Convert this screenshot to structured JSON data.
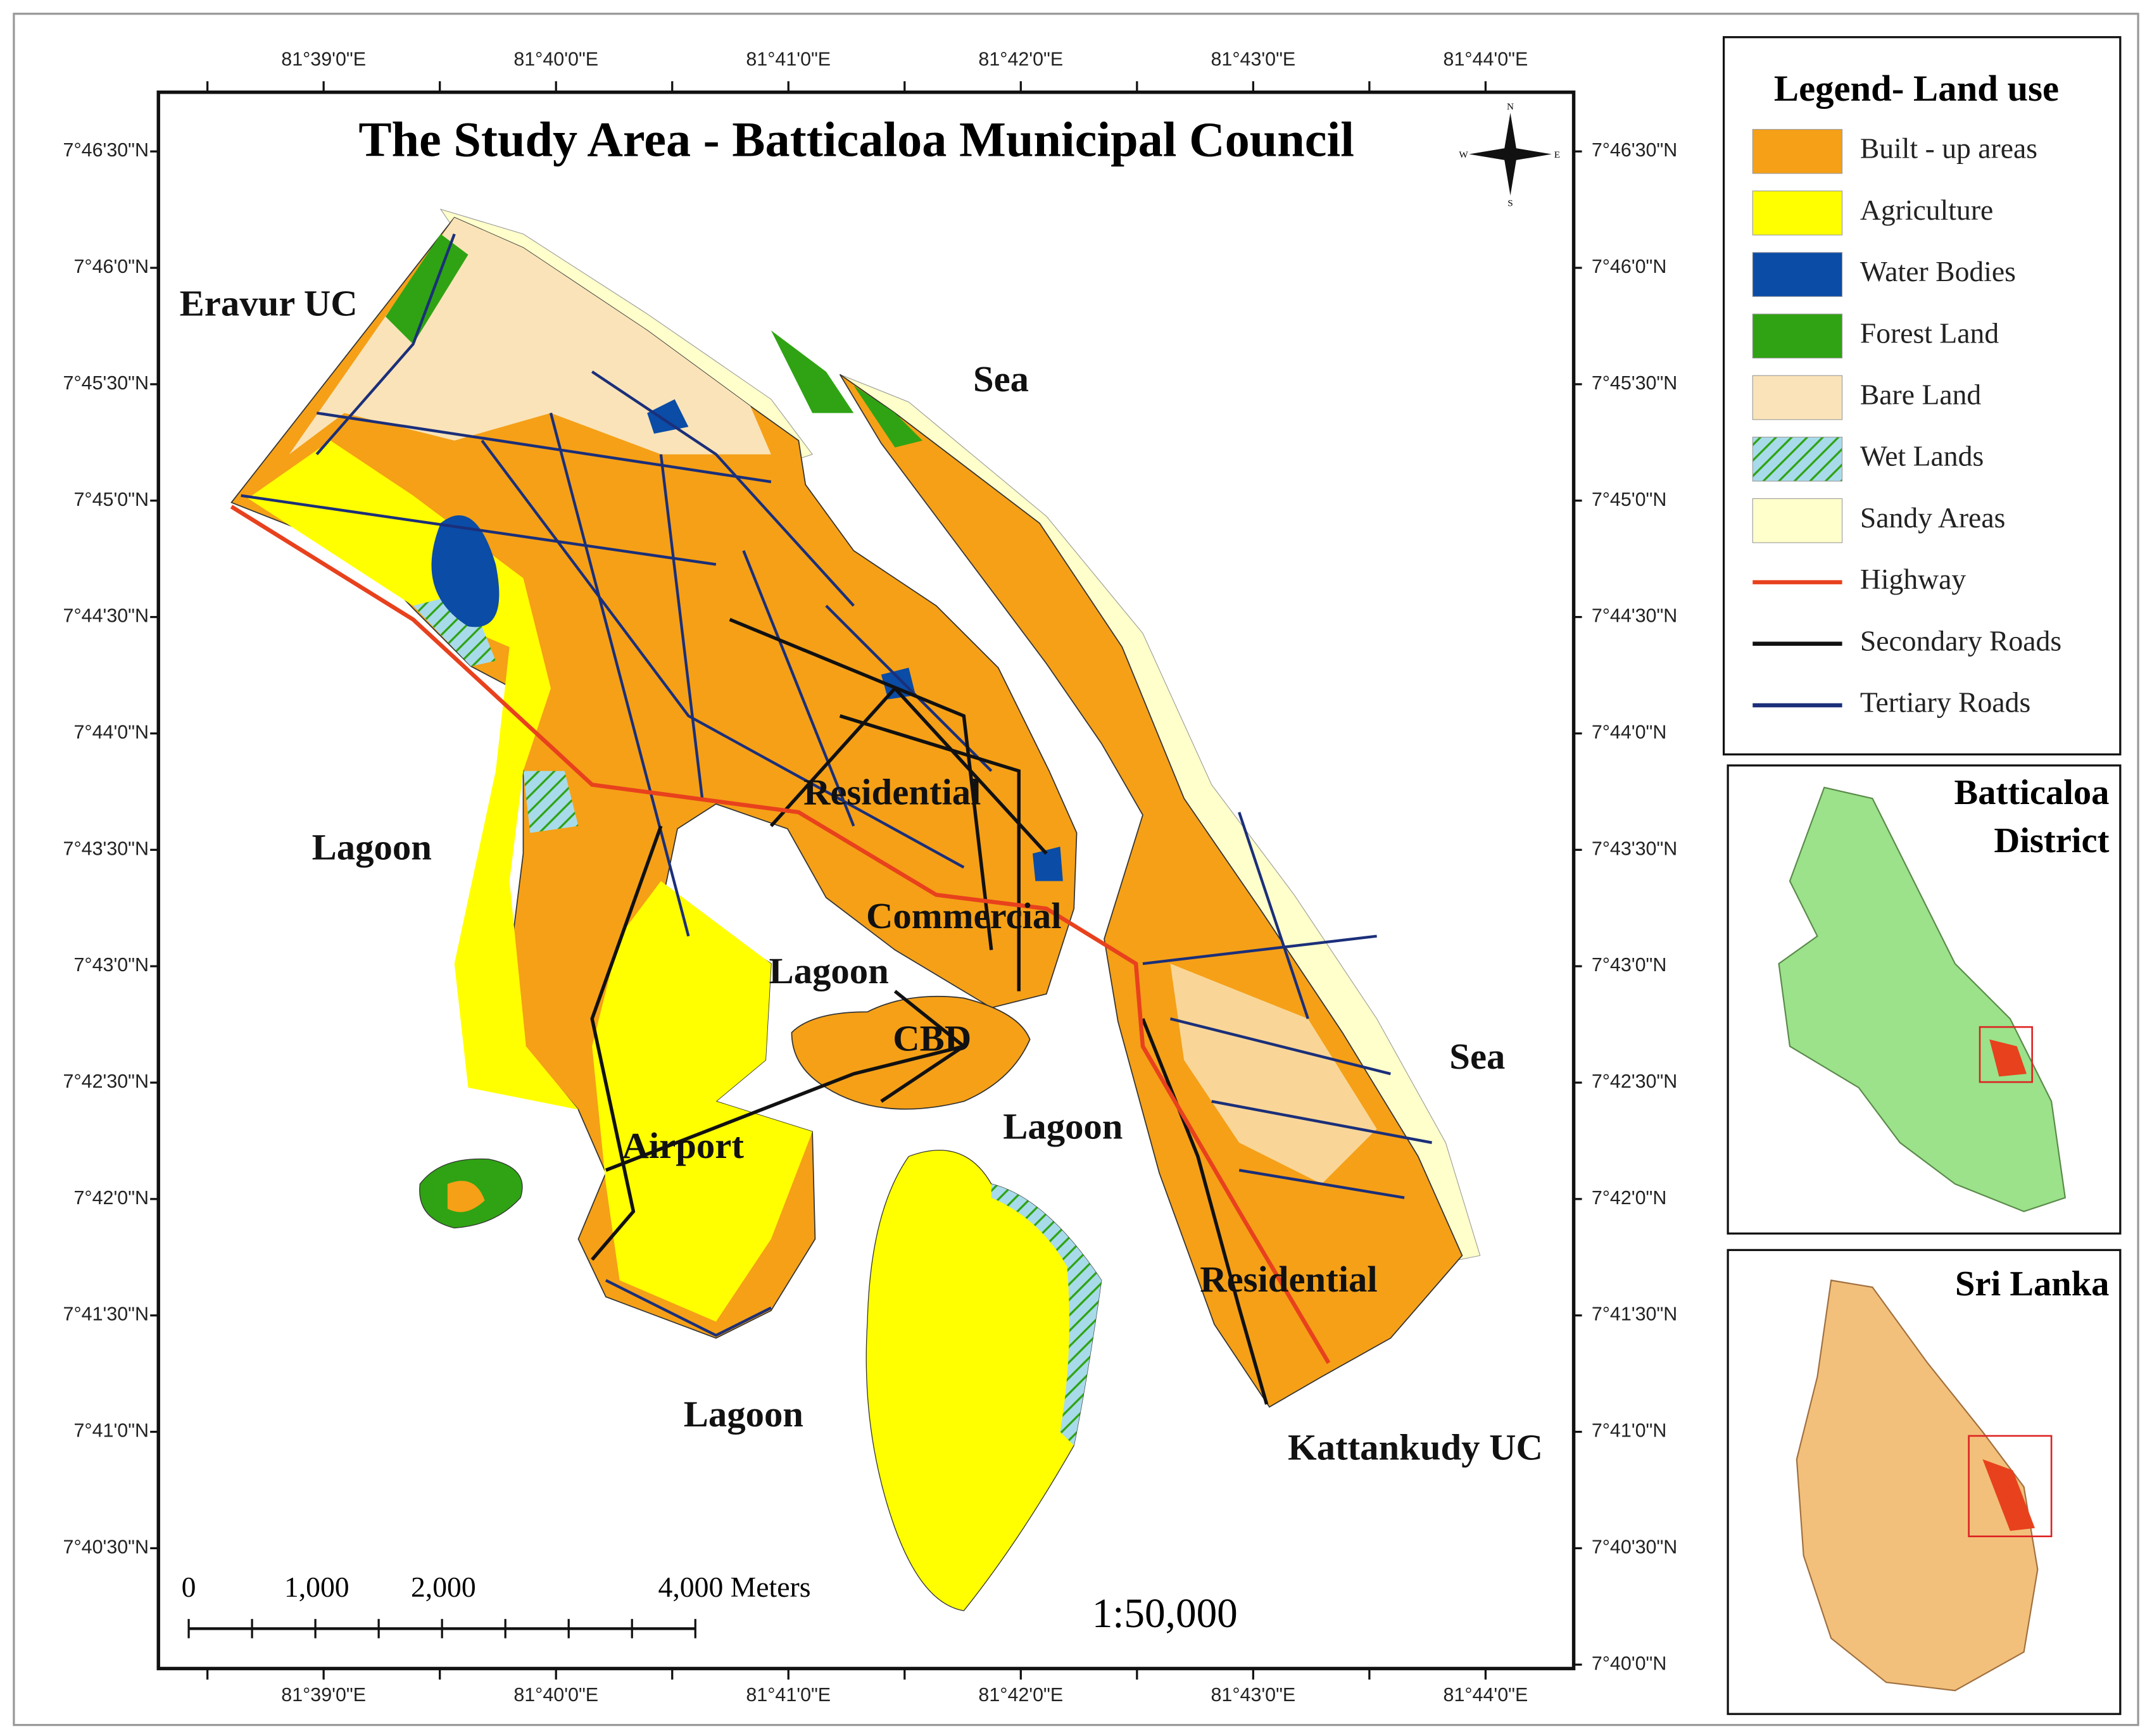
{
  "title": "The Study Area - Batticaloa Municipal Council",
  "longitude_labels": [
    "81°39'0\"E",
    "81°40'0\"E",
    "81°41'0\"E",
    "81°42'0\"E",
    "81°43'0\"E",
    "81°44'0\"E"
  ],
  "latitude_labels": [
    "7°46'30\"N",
    "7°46'0\"N",
    "7°45'30\"N",
    "7°45'0\"N",
    "7°44'30\"N",
    "7°44'0\"N",
    "7°43'30\"N",
    "7°43'0\"N",
    "7°42'30\"N",
    "7°42'0\"N",
    "7°41'30\"N",
    "7°41'0\"N",
    "7°40'30\"N",
    "7°40'0\"N"
  ],
  "place_labels": [
    "Eravur UC",
    "Sea",
    "Lagoon",
    "Residential",
    "Commercial",
    "Lagoon",
    "CBD",
    "Lagoon",
    "Airport",
    "Lagoon",
    "Residential",
    "Sea",
    "Kattankudy UC"
  ],
  "compass": [
    "N",
    "E",
    "S",
    "W"
  ],
  "legend": {
    "title": "Legend- Land use",
    "items": [
      {
        "label": "Built - up areas",
        "kind": "fill",
        "color": "#f5a017"
      },
      {
        "label": "Agriculture",
        "kind": "fill",
        "color": "#ffff00"
      },
      {
        "label": "Water Bodies",
        "kind": "fill",
        "color": "#0a4ca6"
      },
      {
        "label": "Forest Land",
        "kind": "fill",
        "color": "#2fa313"
      },
      {
        "label": "Bare Land",
        "kind": "fill",
        "color": "#fae3b8"
      },
      {
        "label": "Wet Lands",
        "kind": "hatch",
        "color": "#a8dbea"
      },
      {
        "label": "Sandy Areas",
        "kind": "fill",
        "color": "#ffffcc"
      },
      {
        "label": "Highway",
        "kind": "line",
        "color": "#e8411d"
      },
      {
        "label": "Secondary Roads",
        "kind": "line",
        "color": "#111111"
      },
      {
        "label": "Tertiary Roads",
        "kind": "line",
        "color": "#1b2f7a"
      }
    ]
  },
  "insets": [
    {
      "title": "Batticaloa District"
    },
    {
      "title": "Sri Lanka"
    }
  ],
  "scale_bar": {
    "labels": [
      "0",
      "1,000",
      "2,000",
      "4,000 Meters"
    ]
  },
  "scale_ratio": "1:50,000"
}
